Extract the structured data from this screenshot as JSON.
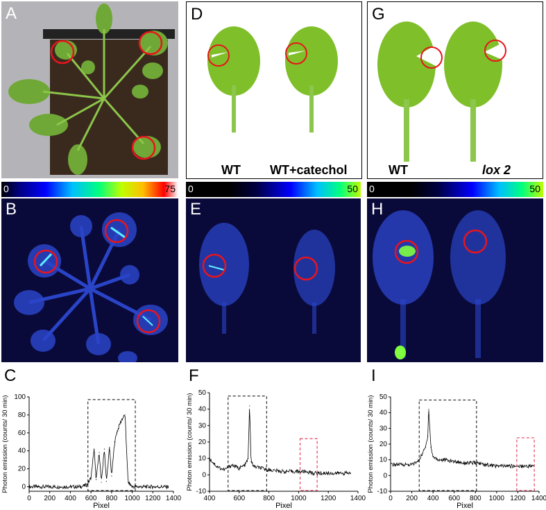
{
  "panels": {
    "A": {
      "label": "A"
    },
    "B": {
      "label": "B",
      "cbar_min": "0",
      "cbar_max": "75"
    },
    "C": {
      "label": "C"
    },
    "D": {
      "label": "D",
      "leaf_left": "WT",
      "leaf_right": "WT+catechol"
    },
    "E": {
      "label": "E",
      "cbar_min": "0",
      "cbar_max": "50"
    },
    "F": {
      "label": "F"
    },
    "G": {
      "label": "G",
      "leaf_left": "WT",
      "leaf_right": "lox 2"
    },
    "H": {
      "label": "H",
      "cbar_min": "0",
      "cbar_max": "50"
    },
    "I": {
      "label": "I"
    }
  },
  "colors": {
    "circle": "#e8141c",
    "dashbox_black": "#333333",
    "dashbox_red": "#e84060",
    "leaf_green": "#7fbf2a",
    "dark_bg": "#0a0a3a"
  },
  "chart_data": [
    {
      "id": "C",
      "type": "line",
      "xlabel": "Pixel",
      "ylabel": "Photon emission (counts/ 30 min)",
      "xlim": [
        0,
        1400
      ],
      "ylim": [
        -5,
        100
      ],
      "xticks": [
        0,
        200,
        400,
        600,
        800,
        1000,
        1200,
        1400
      ],
      "yticks": [
        0,
        20,
        40,
        60,
        80,
        100
      ],
      "x": [
        0,
        100,
        200,
        300,
        400,
        500,
        560,
        600,
        630,
        650,
        680,
        700,
        730,
        750,
        780,
        800,
        830,
        850,
        880,
        900,
        930,
        960,
        1000,
        1100,
        1200,
        1350
      ],
      "y": [
        0,
        0,
        0,
        0,
        0,
        0,
        2,
        10,
        42,
        8,
        38,
        5,
        42,
        6,
        44,
        12,
        50,
        60,
        70,
        75,
        80,
        5,
        0,
        0,
        0,
        0
      ],
      "dash_boxes": [
        {
          "x0": 570,
          "x1": 1030,
          "y0": -5,
          "y1": 97,
          "color": "black"
        }
      ]
    },
    {
      "id": "F",
      "type": "line",
      "xlabel": "Pixel",
      "ylabel": "Photon emission (counts/ 30 min)",
      "xlim": [
        400,
        1400
      ],
      "ylim": [
        -10,
        50
      ],
      "xticks": [
        400,
        600,
        800,
        1000,
        1200,
        1400
      ],
      "yticks": [
        -10,
        0,
        10,
        20,
        30,
        40,
        50
      ],
      "x": [
        400,
        450,
        500,
        550,
        600,
        640,
        660,
        670,
        680,
        700,
        750,
        800,
        900,
        1000,
        1050,
        1100,
        1200,
        1300,
        1350
      ],
      "y": [
        10,
        5,
        3,
        6,
        4,
        6,
        10,
        42,
        8,
        5,
        4,
        3,
        2,
        2,
        2,
        1,
        1,
        1,
        1
      ],
      "dash_boxes": [
        {
          "x0": 525,
          "x1": 785,
          "y0": -10,
          "y1": 48,
          "color": "black"
        },
        {
          "x0": 1010,
          "x1": 1125,
          "y0": -10,
          "y1": 22,
          "color": "red"
        }
      ]
    },
    {
      "id": "I",
      "type": "line",
      "xlabel": "Pixel",
      "ylabel": "Photon emission (counts/ 30 min)",
      "xlim": [
        0,
        1400
      ],
      "ylim": [
        -10,
        50
      ],
      "xticks": [
        0,
        200,
        400,
        600,
        800,
        1000,
        1200,
        1400
      ],
      "yticks": [
        -10,
        0,
        10,
        20,
        30,
        40,
        50
      ],
      "x": [
        0,
        100,
        200,
        260,
        300,
        330,
        350,
        360,
        380,
        400,
        450,
        500,
        600,
        700,
        800,
        900,
        1000,
        1100,
        1200,
        1300,
        1350
      ],
      "y": [
        7,
        7,
        7,
        9,
        14,
        18,
        25,
        42,
        18,
        12,
        10,
        10,
        9,
        8,
        8,
        7,
        6,
        6,
        6,
        6,
        6
      ],
      "dash_boxes": [
        {
          "x0": 270,
          "x1": 810,
          "y0": -10,
          "y1": 48,
          "color": "black"
        },
        {
          "x0": 1190,
          "x1": 1355,
          "y0": -10,
          "y1": 24,
          "color": "red"
        }
      ]
    }
  ]
}
